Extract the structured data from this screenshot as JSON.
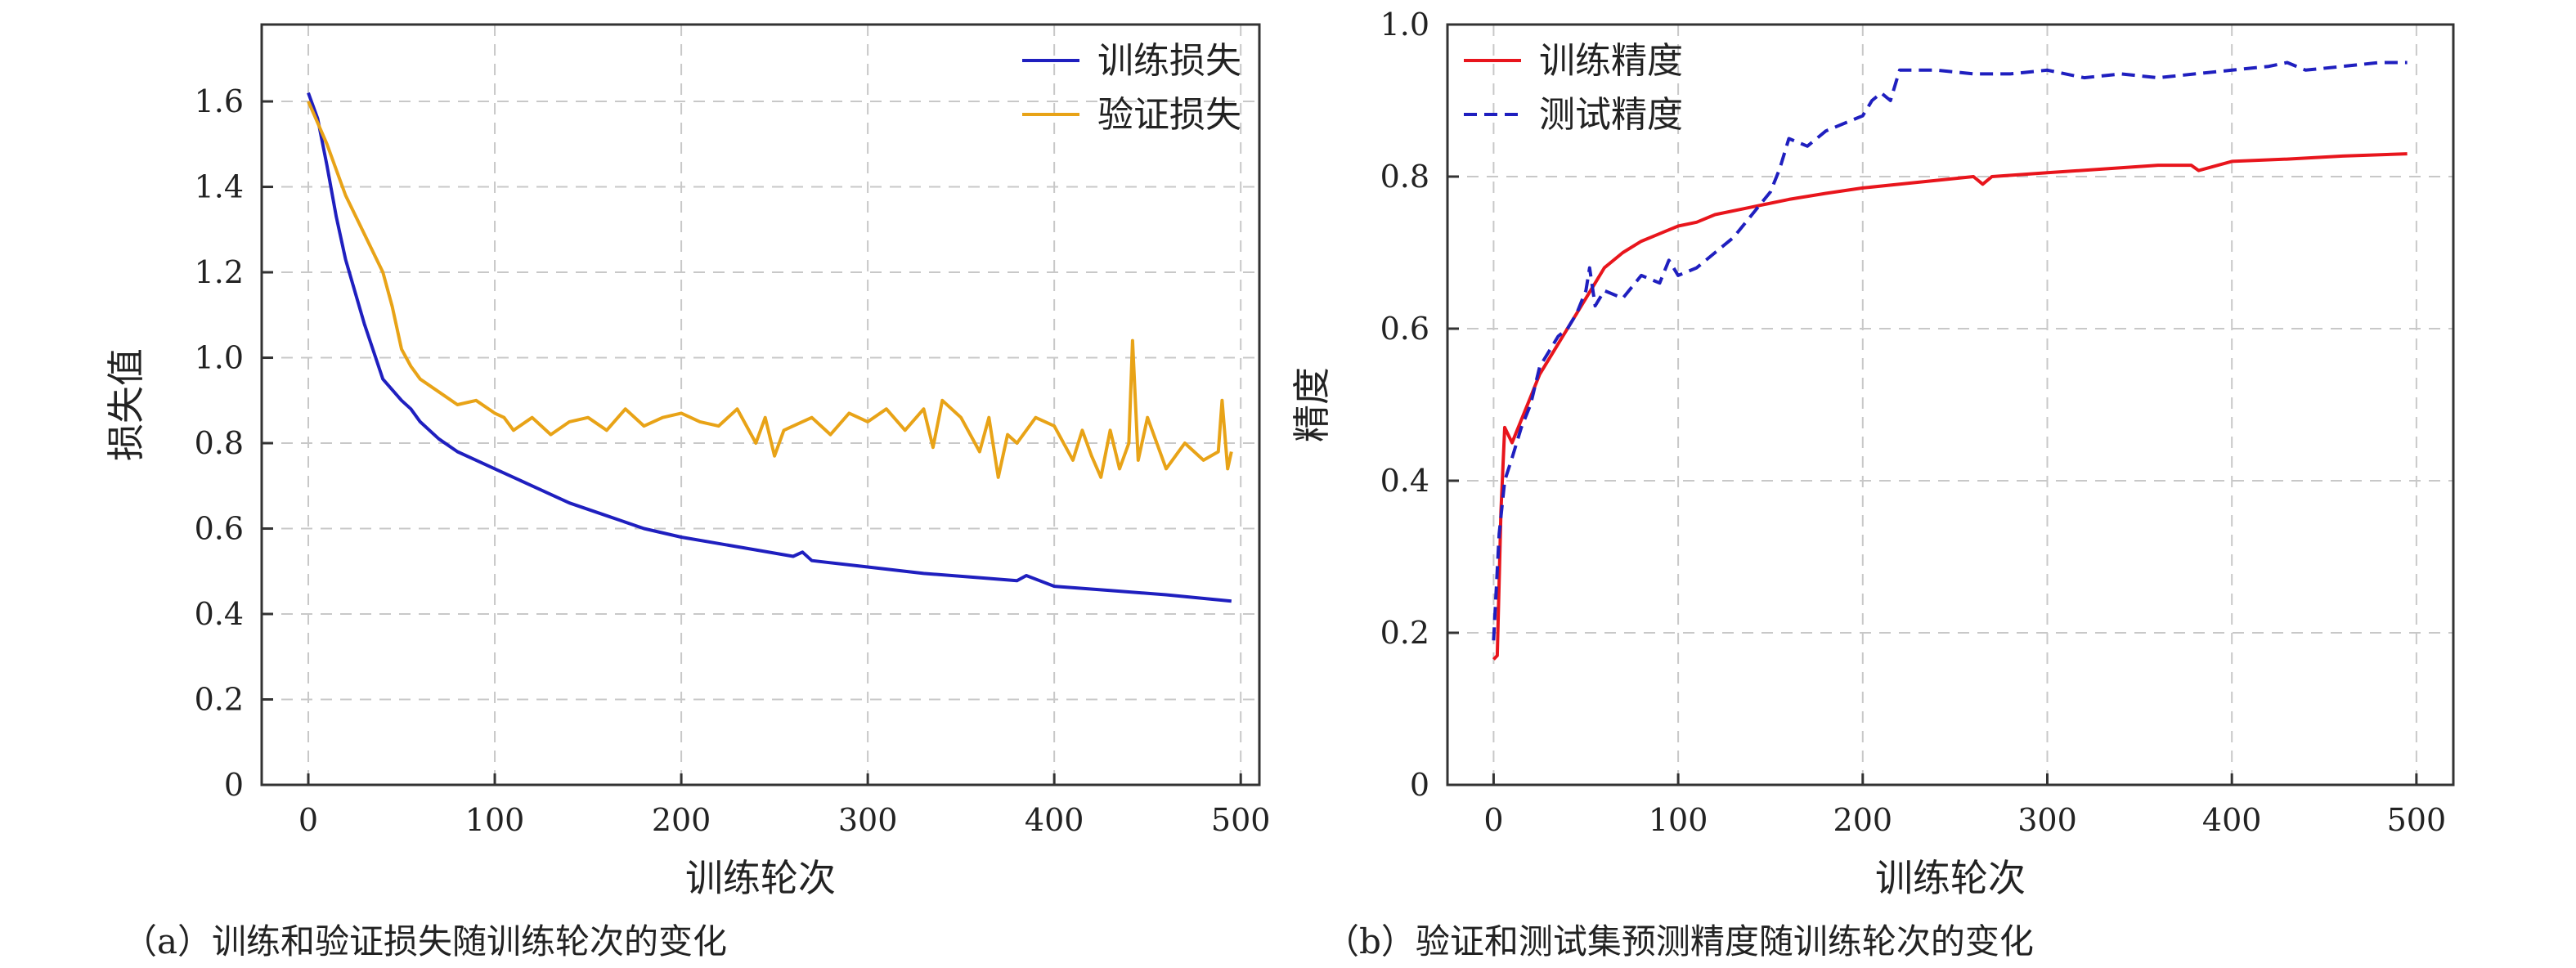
{
  "chart_data": [
    {
      "id": "a",
      "type": "line",
      "caption": "（a）训练和验证损失随训练轮次的变化",
      "xlabel": "训练轮次",
      "ylabel": "损失值",
      "xlim": [
        -25,
        510
      ],
      "ylim": [
        0,
        1.78
      ],
      "xticks": [
        0,
        100,
        200,
        300,
        400,
        500
      ],
      "xtick_labels": [
        "0",
        "100",
        "200",
        "300",
        "400",
        "500"
      ],
      "yticks": [
        0,
        0.2,
        0.4,
        0.6,
        0.8,
        1.0,
        1.2,
        1.4,
        1.6
      ],
      "ytick_labels": [
        "0",
        "0.2",
        "0.4",
        "0.6",
        "0.8",
        "1.0",
        "1.2",
        "1.4",
        "1.6"
      ],
      "grid": true,
      "legend_position": "top-right",
      "series": [
        {
          "name": "训练损失",
          "color": "#1f1fbf",
          "style": "solid",
          "x": [
            0,
            5,
            10,
            15,
            20,
            30,
            40,
            50,
            55,
            60,
            70,
            80,
            90,
            100,
            120,
            140,
            160,
            180,
            200,
            220,
            240,
            260,
            265,
            270,
            300,
            330,
            360,
            380,
            385,
            400,
            430,
            460,
            495
          ],
          "y": [
            1.62,
            1.56,
            1.45,
            1.33,
            1.23,
            1.08,
            0.95,
            0.9,
            0.88,
            0.85,
            0.81,
            0.78,
            0.76,
            0.74,
            0.7,
            0.66,
            0.63,
            0.6,
            0.58,
            0.565,
            0.55,
            0.535,
            0.545,
            0.525,
            0.51,
            0.495,
            0.485,
            0.478,
            0.49,
            0.465,
            0.455,
            0.445,
            0.43
          ]
        },
        {
          "name": "验证损失",
          "color": "#e8a317",
          "style": "solid",
          "x": [
            0,
            10,
            20,
            30,
            40,
            45,
            50,
            55,
            60,
            70,
            80,
            90,
            100,
            105,
            110,
            120,
            130,
            140,
            150,
            160,
            170,
            180,
            190,
            200,
            210,
            220,
            230,
            240,
            245,
            250,
            255,
            260,
            270,
            280,
            290,
            300,
            310,
            320,
            330,
            335,
            340,
            350,
            360,
            365,
            370,
            375,
            380,
            390,
            400,
            410,
            415,
            420,
            425,
            430,
            435,
            440,
            442,
            445,
            450,
            460,
            470,
            480,
            488,
            490,
            493,
            495
          ],
          "y": [
            1.6,
            1.5,
            1.38,
            1.29,
            1.2,
            1.12,
            1.02,
            0.98,
            0.95,
            0.92,
            0.89,
            0.9,
            0.87,
            0.86,
            0.83,
            0.86,
            0.82,
            0.85,
            0.86,
            0.83,
            0.88,
            0.84,
            0.86,
            0.87,
            0.85,
            0.84,
            0.88,
            0.8,
            0.86,
            0.77,
            0.83,
            0.84,
            0.86,
            0.82,
            0.87,
            0.85,
            0.88,
            0.83,
            0.88,
            0.79,
            0.9,
            0.86,
            0.78,
            0.86,
            0.72,
            0.82,
            0.8,
            0.86,
            0.84,
            0.76,
            0.83,
            0.77,
            0.72,
            0.83,
            0.74,
            0.8,
            1.04,
            0.76,
            0.86,
            0.74,
            0.8,
            0.76,
            0.78,
            0.9,
            0.74,
            0.78
          ]
        }
      ]
    },
    {
      "id": "b",
      "type": "line",
      "caption": "（b）验证和测试集预测精度随训练轮次的变化",
      "xlabel": "训练轮次",
      "ylabel": "精度",
      "xlim": [
        -25,
        520
      ],
      "ylim": [
        0,
        1.0
      ],
      "xticks": [
        0,
        100,
        200,
        300,
        400,
        500
      ],
      "xtick_labels": [
        "0",
        "100",
        "200",
        "300",
        "400",
        "500"
      ],
      "yticks": [
        0,
        0.2,
        0.4,
        0.6,
        0.8,
        1.0
      ],
      "ytick_labels": [
        "0",
        "0.2",
        "0.4",
        "0.6",
        "0.8",
        "1.0"
      ],
      "grid": true,
      "legend_position": "top-left",
      "series": [
        {
          "name": "训练精度",
          "color": "#e8151c",
          "style": "solid",
          "x": [
            0,
            2,
            4,
            6,
            8,
            10,
            15,
            20,
            25,
            30,
            35,
            40,
            45,
            50,
            55,
            60,
            70,
            80,
            90,
            100,
            110,
            120,
            140,
            160,
            180,
            200,
            220,
            240,
            260,
            265,
            270,
            300,
            330,
            360,
            378,
            382,
            400,
            430,
            460,
            495
          ],
          "y": [
            0.165,
            0.17,
            0.36,
            0.47,
            0.46,
            0.45,
            0.48,
            0.51,
            0.54,
            0.56,
            0.58,
            0.6,
            0.62,
            0.64,
            0.66,
            0.68,
            0.7,
            0.715,
            0.725,
            0.735,
            0.74,
            0.75,
            0.76,
            0.77,
            0.778,
            0.785,
            0.79,
            0.795,
            0.8,
            0.79,
            0.8,
            0.805,
            0.81,
            0.815,
            0.815,
            0.808,
            0.82,
            0.823,
            0.827,
            0.83
          ]
        },
        {
          "name": "测试精度",
          "color": "#1f1fbf",
          "style": "dashed",
          "x": [
            0,
            3,
            6,
            10,
            15,
            20,
            25,
            30,
            35,
            40,
            45,
            50,
            52,
            55,
            60,
            70,
            80,
            90,
            95,
            100,
            110,
            120,
            130,
            140,
            150,
            155,
            160,
            170,
            180,
            190,
            200,
            205,
            210,
            215,
            220,
            230,
            240,
            260,
            280,
            300,
            320,
            340,
            360,
            380,
            400,
            420,
            430,
            440,
            460,
            480,
            495
          ],
          "y": [
            0.19,
            0.33,
            0.4,
            0.43,
            0.47,
            0.5,
            0.55,
            0.57,
            0.59,
            0.6,
            0.62,
            0.65,
            0.68,
            0.63,
            0.65,
            0.64,
            0.67,
            0.66,
            0.69,
            0.67,
            0.68,
            0.7,
            0.72,
            0.75,
            0.78,
            0.81,
            0.85,
            0.84,
            0.86,
            0.87,
            0.88,
            0.9,
            0.91,
            0.9,
            0.94,
            0.94,
            0.94,
            0.935,
            0.935,
            0.94,
            0.93,
            0.935,
            0.93,
            0.935,
            0.94,
            0.945,
            0.95,
            0.94,
            0.945,
            0.95,
            0.95
          ]
        }
      ]
    }
  ]
}
